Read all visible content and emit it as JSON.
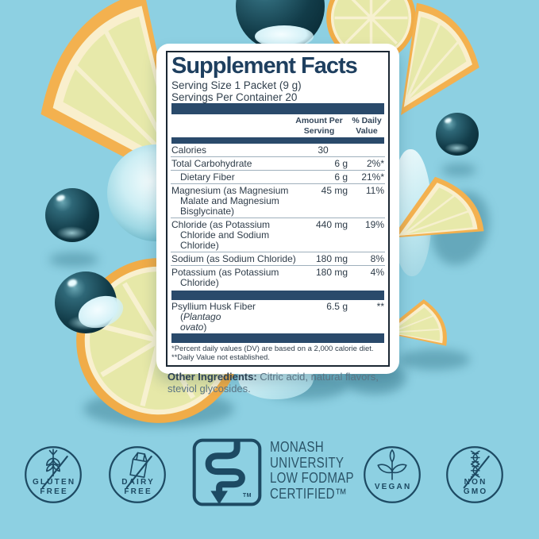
{
  "colors": {
    "background": "#8dd0e2",
    "panel_navy": "#1e3f5f",
    "bar_navy": "#2a4a6b",
    "badge_teal": "#1d4a63"
  },
  "panel": {
    "title": "Supplement Facts",
    "serving_size": "Serving Size 1 Packet (9 g)",
    "servings_per_container": "Servings Per Container 20",
    "header": {
      "amount": "Amount Per\nServing",
      "daily": "% Daily\nValue"
    },
    "rows": [
      {
        "label": "Calories",
        "amount": "30",
        "dv": ""
      },
      {
        "label": "Total Carbohydrate",
        "amount": "6 g",
        "dv": "2%*"
      },
      {
        "label": "Dietary Fiber",
        "indent": true,
        "amount": "6 g",
        "dv": "21%*"
      },
      {
        "label": "Magnesium (as Magnesium\nMalate and Magnesium\nBisglycinate)",
        "amount": "45 mg",
        "dv": "11%"
      },
      {
        "label": "Chloride (as Potassium\nChloride and Sodium Chloride)",
        "amount": "440 mg",
        "dv": "19%"
      },
      {
        "label": "Sodium (as Sodium Chloride)",
        "amount": "180 mg",
        "dv": "8%"
      },
      {
        "label": "Potassium (as Potassium\nChloride)",
        "amount": "180 mg",
        "dv": "4%"
      }
    ],
    "extra_row": {
      "label_prefix": "Psyllium Husk Fiber (",
      "label_italic": "Plantago\novato",
      "label_suffix": ")",
      "amount": "6.5 g",
      "dv": "**"
    },
    "footnotes": [
      "*Percent daily values (DV) are based on a 2,000 calorie diet.",
      "**Daily Value not established."
    ],
    "other_ingredients_label": "Other Ingredients:",
    "other_ingredients_text": " Citric acid, natural flavors, steviol glycosides."
  },
  "badges": [
    {
      "icon": "wheat-crossed-icon",
      "lines": [
        "GLUTEN",
        "FREE"
      ]
    },
    {
      "icon": "milk-carton-crossed-icon",
      "lines": [
        "DAIRY",
        "FREE"
      ]
    },
    {
      "icon": "intestine-icon",
      "tm": "TM",
      "text_lines": [
        "MONASH",
        "UNIVERSITY",
        "LOW FODMAP",
        "CERTIFIED™"
      ]
    },
    {
      "icon": "plant-icon",
      "lines": [
        "VEGAN"
      ]
    },
    {
      "icon": "dna-crossed-icon",
      "lines": [
        "NON",
        "GMO"
      ]
    }
  ]
}
